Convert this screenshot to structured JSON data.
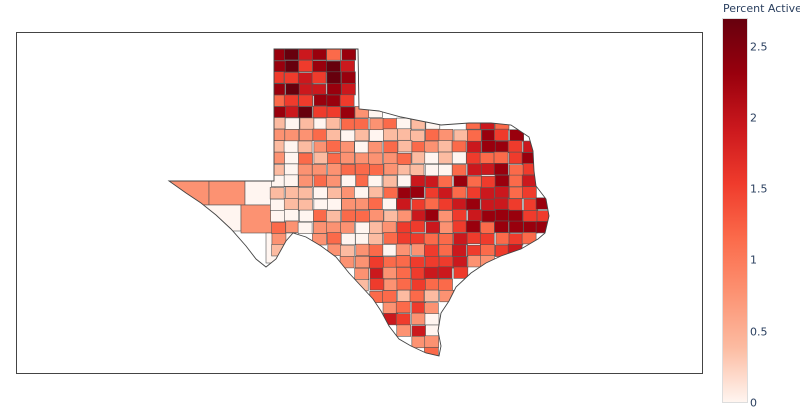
{
  "colorbar": {
    "title": "Percent Active",
    "min": 0,
    "max": 2.7,
    "ticks": [
      {
        "value": 0,
        "label": "0"
      },
      {
        "value": 0.5,
        "label": "0.5"
      },
      {
        "value": 1,
        "label": "1"
      },
      {
        "value": 1.5,
        "label": "1.5"
      },
      {
        "value": 2,
        "label": "2"
      },
      {
        "value": 2.5,
        "label": "2.5"
      }
    ],
    "colors": [
      "#fff5f0",
      "#fcbba1",
      "#fc9272",
      "#fb6a4a",
      "#ef3b2c",
      "#cb181d",
      "#99000d",
      "#67000d"
    ]
  },
  "map": {
    "region": "Texas counties",
    "border_color": "#555555"
  }
}
